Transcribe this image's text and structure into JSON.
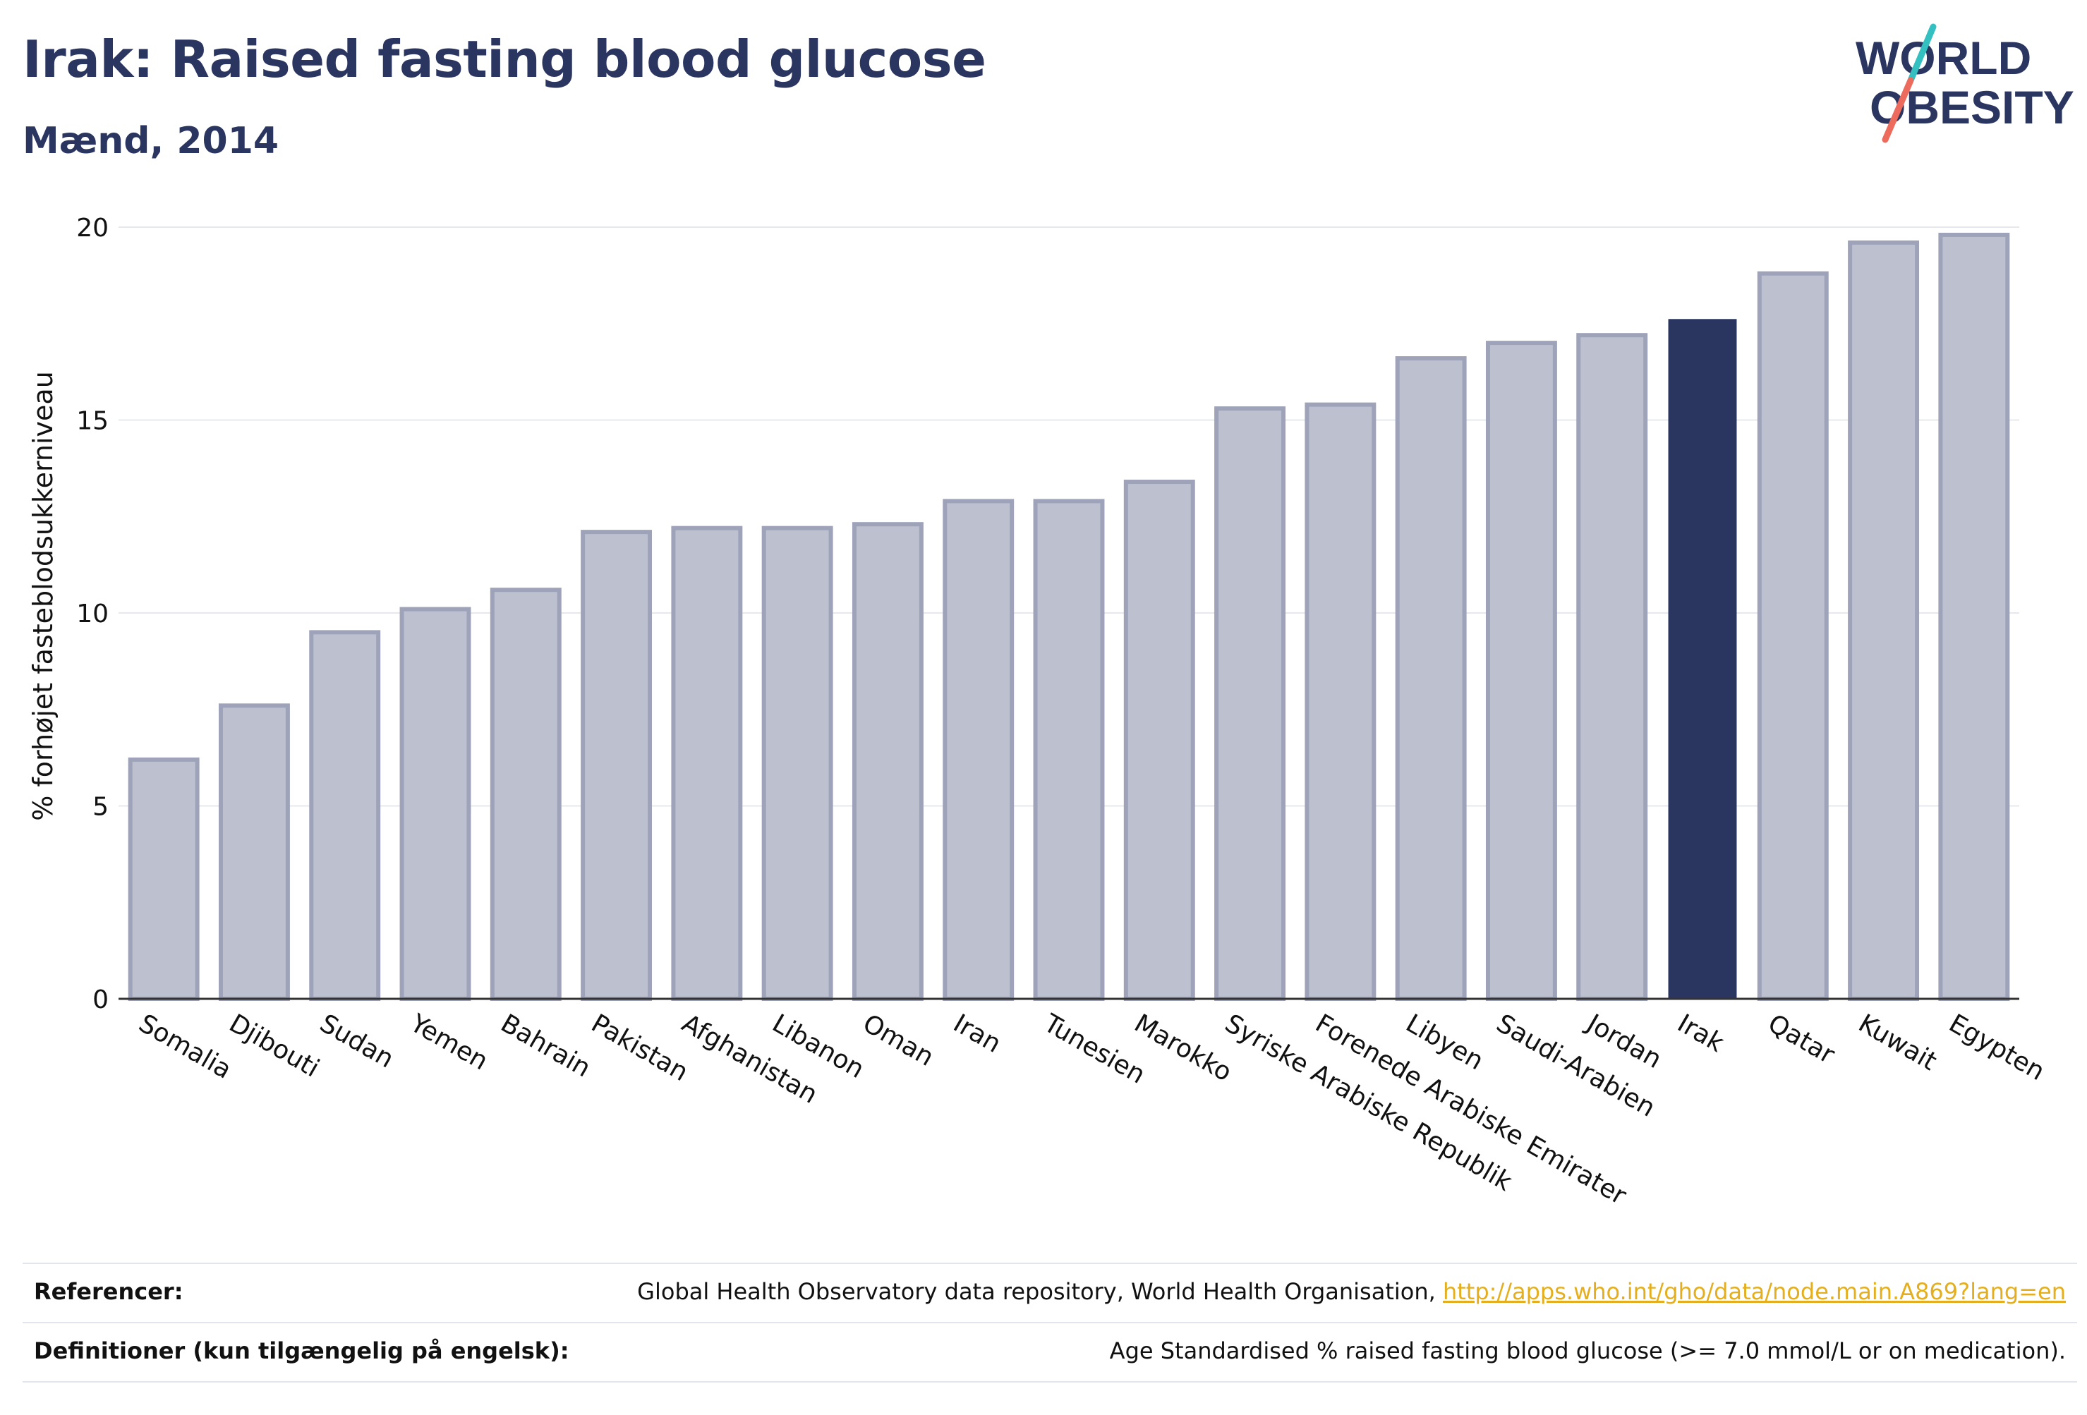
{
  "header": {
    "title": "Irak: Raised fasting blood glucose",
    "subtitle": "Mænd, 2014"
  },
  "logo": {
    "line1": "WORLD",
    "line2": "OBESITY",
    "icon": "world-obesity-logo"
  },
  "colors": {
    "navy": "#2a3560",
    "bar_fill": "#bcc0cf",
    "bar_stroke": "#9ea3ba",
    "highlight": "#2a3560",
    "grid": "#e6e8ee",
    "link": "#e4ae1c",
    "logo_teal": "#34bfc1",
    "logo_coral": "#ec6b5c"
  },
  "chart_data": {
    "type": "bar",
    "title": "Irak: Raised fasting blood glucose",
    "subtitle": "Mænd, 2014",
    "xlabel": "",
    "ylabel": "% forhøjet fasteblodsukkerniveau",
    "ylim": [
      0,
      20
    ],
    "yticks": [
      0,
      5,
      10,
      15,
      20
    ],
    "grid": true,
    "highlight": "Irak",
    "categories": [
      "Somalia",
      "Djibouti",
      "Sudan",
      "Yemen",
      "Bahrain",
      "Pakistan",
      "Afghanistan",
      "Libanon",
      "Oman",
      "Iran",
      "Tunesien",
      "Marokko",
      "Syriske Arabiske Republik",
      "Forenede Arabiske Emirater",
      "Libyen",
      "Saudi-Arabien",
      "Jordan",
      "Irak",
      "Qatar",
      "Kuwait",
      "Egypten"
    ],
    "values": [
      6.2,
      7.6,
      9.5,
      10.1,
      10.6,
      12.1,
      12.2,
      12.2,
      12.3,
      12.9,
      12.9,
      13.4,
      15.3,
      15.4,
      16.6,
      17.0,
      17.2,
      17.6,
      18.8,
      19.6,
      19.8
    ]
  },
  "footer": {
    "references_label": "Referencer:",
    "references_text": "Global Health Observatory data repository, World Health Organisation, ",
    "references_link": "http://apps.who.int/gho/data/node.main.A869?lang=en",
    "definitions_label": "Definitioner (kun tilgængelig på engelsk):",
    "definitions_text": "Age Standardised % raised fasting blood glucose (>= 7.0 mmol/L or on medication)."
  }
}
